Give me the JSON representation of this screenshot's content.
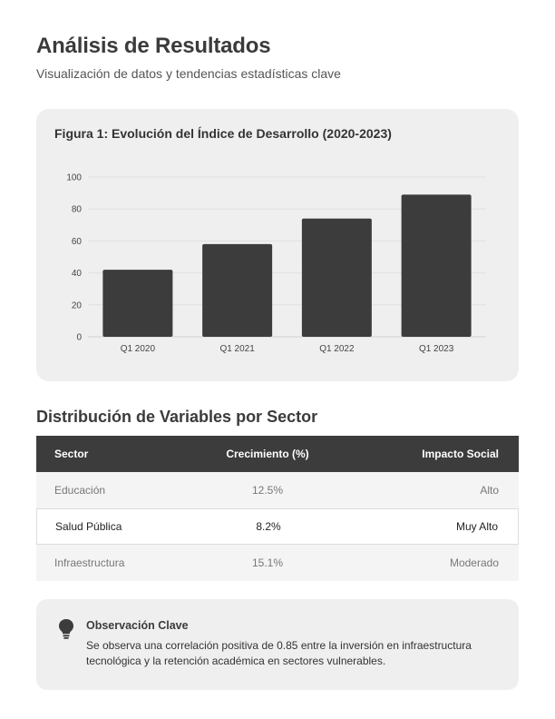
{
  "header": {
    "title": "Análisis de Resultados",
    "subtitle": "Visualización de datos y tendencias estadísticas clave"
  },
  "figure": {
    "caption": "Figura 1: Evolución del Índice de Desarrollo (2020-2023)"
  },
  "chart_data": {
    "type": "bar",
    "title": "Figura 1: Evolución del Índice de Desarrollo (2020-2023)",
    "categories": [
      "Q1 2020",
      "Q1 2021",
      "Q1 2022",
      "Q1 2023"
    ],
    "values": [
      42,
      58,
      74,
      89
    ],
    "ylim": [
      0,
      100
    ],
    "yticks": [
      0,
      20,
      40,
      60,
      80,
      100
    ],
    "xlabel": "",
    "ylabel": "",
    "grid": true,
    "bar_color": "#3c3c3c"
  },
  "section": {
    "title": "Distribución de Variables por Sector"
  },
  "table": {
    "headers": [
      "Sector",
      "Crecimiento (%)",
      "Impacto Social"
    ],
    "rows": [
      [
        "Educación",
        "12.5%",
        "Alto"
      ],
      [
        "Salud Pública",
        "8.2%",
        "Muy Alto"
      ],
      [
        "Infraestructura",
        "15.1%",
        "Moderado"
      ]
    ]
  },
  "note": {
    "icon": "lightbulb-icon",
    "title": "Observación Clave",
    "text": "Se observa una correlación positiva de 0.85 entre la inversión en infraestructura tecnológica y la retención académica en sectores vulnerables."
  },
  "colors": {
    "dark": "#3c3c3c",
    "card_bg": "#efefef"
  }
}
